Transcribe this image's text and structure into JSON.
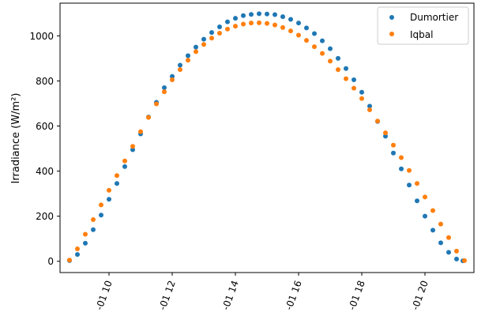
{
  "chart_data": {
    "type": "scatter",
    "title": "",
    "xlabel": "",
    "ylabel": "Irradiance (W/m²)",
    "x_unit": "hour of day",
    "xlim": [
      8.45,
      21.55
    ],
    "ylim": [
      -50,
      1145
    ],
    "x_ticks": [
      10,
      12,
      14,
      16,
      18,
      20
    ],
    "x_tick_labels": [
      "-01 10",
      "-01 12",
      "-01 14",
      "-01 16",
      "-01 18",
      "-01 20"
    ],
    "y_ticks": [
      0,
      200,
      400,
      600,
      800,
      1000
    ],
    "y_tick_labels": [
      "0",
      "200",
      "400",
      "600",
      "800",
      "1000"
    ],
    "grid": false,
    "legend_position": "top-right",
    "series": [
      {
        "name": "Dumortier",
        "color": "#1f77b4",
        "marker": "circle",
        "x": [
          8.75,
          9.0,
          9.25,
          9.5,
          9.75,
          10.0,
          10.25,
          10.5,
          10.75,
          11.0,
          11.25,
          11.5,
          11.75,
          12.0,
          12.25,
          12.5,
          12.75,
          13.0,
          13.25,
          13.5,
          13.75,
          14.0,
          14.25,
          14.5,
          14.75,
          15.0,
          15.25,
          15.5,
          15.75,
          16.0,
          16.25,
          16.5,
          16.75,
          17.0,
          17.25,
          17.5,
          17.75,
          18.0,
          18.25,
          18.5,
          18.75,
          19.0,
          19.25,
          19.5,
          19.75,
          20.0,
          20.25,
          20.5,
          20.75,
          21.0,
          21.2
        ],
        "values": [
          3,
          30,
          80,
          140,
          205,
          275,
          345,
          420,
          495,
          565,
          640,
          705,
          770,
          820,
          870,
          912,
          950,
          985,
          1015,
          1040,
          1062,
          1078,
          1090,
          1095,
          1098,
          1097,
          1094,
          1085,
          1073,
          1057,
          1035,
          1010,
          978,
          943,
          900,
          855,
          805,
          750,
          688,
          620,
          555,
          480,
          410,
          338,
          268,
          200,
          138,
          82,
          40,
          10,
          2
        ]
      },
      {
        "name": "Iqbal",
        "color": "#ff7f0e",
        "marker": "circle",
        "x": [
          8.75,
          9.0,
          9.25,
          9.5,
          9.75,
          10.0,
          10.25,
          10.5,
          10.75,
          11.0,
          11.25,
          11.5,
          11.75,
          12.0,
          12.25,
          12.5,
          12.75,
          13.0,
          13.25,
          13.5,
          13.75,
          14.0,
          14.25,
          14.5,
          14.75,
          15.0,
          15.25,
          15.5,
          15.75,
          16.0,
          16.25,
          16.5,
          16.75,
          17.0,
          17.25,
          17.5,
          17.75,
          18.0,
          18.25,
          18.5,
          18.75,
          19.0,
          19.25,
          19.5,
          19.75,
          20.0,
          20.25,
          20.5,
          20.75,
          21.0,
          21.25
        ],
        "values": [
          5,
          55,
          120,
          185,
          250,
          315,
          380,
          445,
          510,
          575,
          638,
          698,
          752,
          805,
          850,
          892,
          930,
          962,
          990,
          1012,
          1030,
          1043,
          1052,
          1057,
          1058,
          1055,
          1048,
          1037,
          1022,
          1003,
          980,
          952,
          922,
          888,
          850,
          810,
          768,
          722,
          672,
          622,
          570,
          515,
          460,
          403,
          345,
          285,
          225,
          165,
          105,
          45,
          3
        ]
      }
    ]
  }
}
